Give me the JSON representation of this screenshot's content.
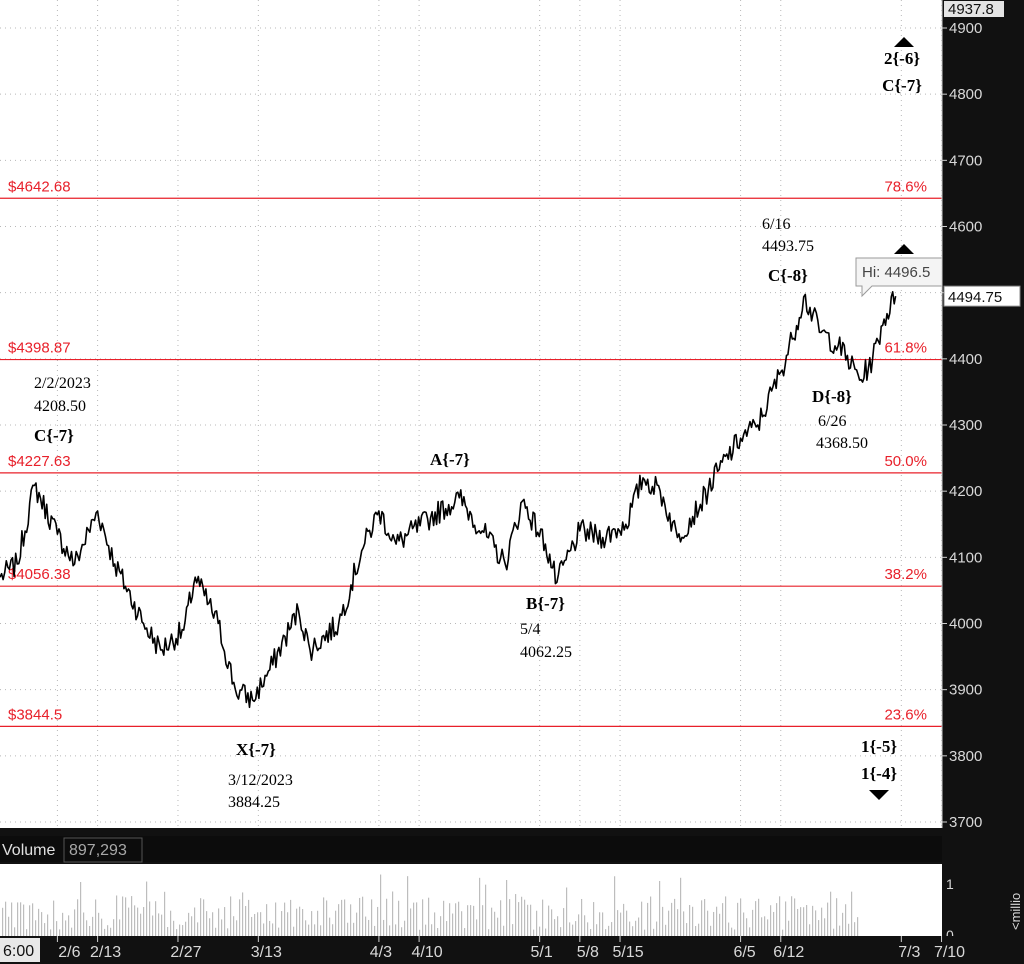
{
  "chart_data": {
    "type": "line",
    "instrument_label": "",
    "y_axis": {
      "ticks": [
        3700,
        3800,
        3900,
        4000,
        4100,
        4200,
        4300,
        4400,
        4500,
        4600,
        4700,
        4800,
        4900
      ],
      "top_label": "4937.8",
      "range": [
        3690,
        4940
      ]
    },
    "x_axis": {
      "ticks": [
        "6:00",
        "2/6",
        "2/13",
        "2/27",
        "3/13",
        "4/3",
        "4/10",
        "5/1",
        "5/8",
        "5/15",
        "6/5",
        "6/12",
        "7/3",
        "7/10"
      ],
      "range": [
        "2023-01-27",
        "2023-07-12"
      ]
    },
    "current_price": "4494.75",
    "high_tooltip": "Hi: 4496.5",
    "fib_levels": [
      {
        "price_label": "$4642.68",
        "percent": "78.6%",
        "value": 4642.68
      },
      {
        "price_label": "$4398.87",
        "percent": "61.8%",
        "value": 4398.87
      },
      {
        "price_label": "$4227.63",
        "percent": "50.0%",
        "value": 4227.63
      },
      {
        "price_label": "$4056.38",
        "percent": "38.2%",
        "value": 4056.38
      },
      {
        "price_label": "$3844.5",
        "percent": "23.6%",
        "value": 3844.5
      }
    ],
    "key_points": [
      {
        "date": "2023-02-02",
        "value": 4208.5
      },
      {
        "date": "2023-03-12",
        "value": 3884.25
      },
      {
        "date": "2023-05-04",
        "value": 4062.25
      },
      {
        "date": "2023-06-16",
        "value": 4493.75
      },
      {
        "date": "2023-06-26",
        "value": 4368.5
      }
    ],
    "annotations": [
      {
        "id": "c7",
        "bold": "C{-7}",
        "lines": [
          "2/2/2023",
          "4208.50"
        ]
      },
      {
        "id": "x7",
        "bold": "X{-7}",
        "lines": [
          "3/12/2023",
          "3884.25"
        ]
      },
      {
        "id": "a7",
        "bold": "A{-7}",
        "lines": []
      },
      {
        "id": "b7",
        "bold": "B{-7}",
        "lines": [
          "5/4",
          "4062.25"
        ]
      },
      {
        "id": "c8",
        "bold": "C{-8}",
        "lines": [
          "6/16",
          "4493.75"
        ]
      },
      {
        "id": "d8",
        "bold": "D{-8}",
        "lines": [
          "6/26",
          "4368.50"
        ]
      },
      {
        "id": "top",
        "bold": "2{-6}",
        "bold2": "C{-7}"
      },
      {
        "id": "bottom",
        "bold": "1{-5}",
        "bold2": "1{-4}"
      }
    ],
    "volume": {
      "label": "Volume",
      "value": "897,293",
      "axis_ticks": [
        "1",
        "0"
      ],
      "axis_unit": "<millio"
    },
    "colors": {
      "price": "#000000",
      "fib": "#e8202a",
      "fib_text": "#e8202a",
      "grid": "#b8b8b8",
      "panel": "#111111"
    }
  }
}
